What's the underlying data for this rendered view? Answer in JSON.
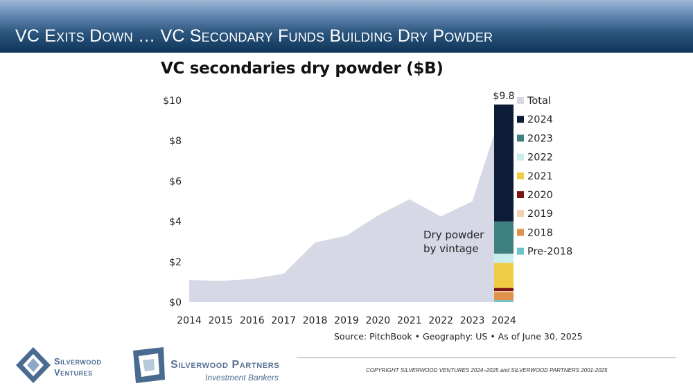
{
  "header": {
    "title": "VC Exits Down … VC Secondary Funds Building Dry Powder"
  },
  "chart_data": {
    "type": "area",
    "title": "VC secondaries dry powder ($B)",
    "x": [
      "2014",
      "2015",
      "2016",
      "2017",
      "2018",
      "2019",
      "2020",
      "2021",
      "2022",
      "2023",
      "2024"
    ],
    "series": [
      {
        "name": "Total",
        "values": [
          1.1,
          1.05,
          1.15,
          1.4,
          2.95,
          3.3,
          4.3,
          5.1,
          4.25,
          5.0,
          9.8
        ],
        "color": "#d7d8e5"
      }
    ],
    "stacked_bar": {
      "category": "2024",
      "total_label": "$9.8",
      "annotation": "Dry powder by vintage",
      "annotation_lines": [
        "Dry powder",
        "by vintage"
      ],
      "segments": [
        {
          "name": "Pre-2018",
          "value": 0.1,
          "color": "#6cc4c9"
        },
        {
          "name": "2018",
          "value": 0.4,
          "color": "#e0924a"
        },
        {
          "name": "2019",
          "value": 0.05,
          "color": "#f1d2b0"
        },
        {
          "name": "2020",
          "value": 0.15,
          "color": "#7a1515"
        },
        {
          "name": "2021",
          "value": 1.25,
          "color": "#f0cc45"
        },
        {
          "name": "2022",
          "value": 0.45,
          "color": "#c9eeee"
        },
        {
          "name": "2023",
          "value": 1.6,
          "color": "#3e7f80"
        },
        {
          "name": "2024",
          "value": 5.8,
          "color": "#0d1d38"
        }
      ]
    },
    "legend": [
      {
        "name": "Total",
        "color": "#d7d8e5"
      },
      {
        "name": "2024",
        "color": "#0d1d38"
      },
      {
        "name": "2023",
        "color": "#3e7f80"
      },
      {
        "name": "2022",
        "color": "#c9eeee"
      },
      {
        "name": "2021",
        "color": "#f0cc45"
      },
      {
        "name": "2020",
        "color": "#7a1515"
      },
      {
        "name": "2019",
        "color": "#f1d2b0"
      },
      {
        "name": "2018",
        "color": "#e0924a"
      },
      {
        "name": "Pre-2018",
        "color": "#6cc4c9"
      }
    ],
    "legend_position": "right",
    "yticks": [
      "$0",
      "$2",
      "$4",
      "$6",
      "$8",
      "$10"
    ],
    "ytick_values": [
      0,
      2,
      4,
      6,
      8,
      10
    ],
    "ylim": [
      0,
      10
    ],
    "grid": false
  },
  "source": "Source: PitchBook • Geography: US • As of June 30, 2025",
  "footer": {
    "copyright": "COPYRIGHT SILVERWOOD VENTURES 2024–2025 and SILVERWOOD PARTNERS 2001-2025",
    "logo1": {
      "line1": "Silverwood",
      "line2": "Ventures"
    },
    "logo2": {
      "line1": "Silverwood Partners",
      "line2": "Investment Bankers"
    }
  }
}
